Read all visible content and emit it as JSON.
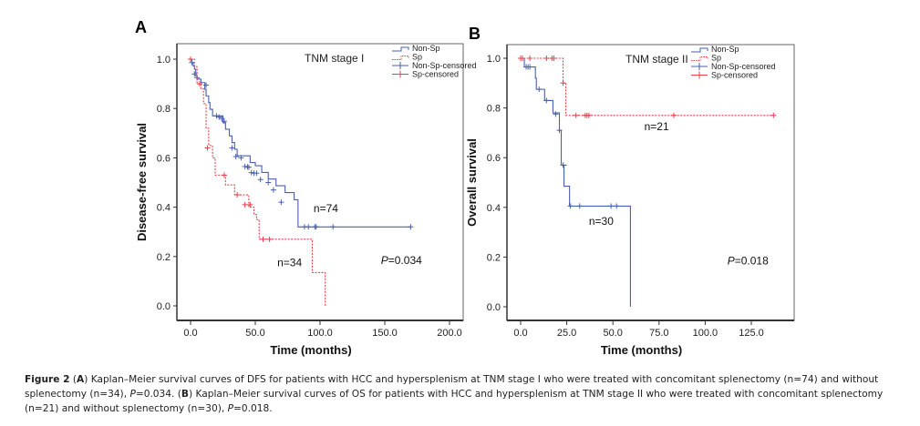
{
  "chart_data": [
    {
      "panel": "A",
      "type": "line",
      "subtype": "kaplan-meier",
      "title": "TNM stage I",
      "xlabel": "Time (months)",
      "ylabel": "Disease-free survival",
      "xlim": [
        -2,
        210
      ],
      "ylim": [
        -0.05,
        1.05
      ],
      "xticks": [
        0,
        50,
        100,
        150,
        200
      ],
      "xtick_labels": [
        "0.0",
        "50.0",
        "100.0",
        "150.0",
        "200.0"
      ],
      "yticks": [
        0,
        0.2,
        0.4,
        0.6,
        0.8,
        1.0
      ],
      "ytick_labels": [
        "0.0",
        "0.2",
        "0.4",
        "0.6",
        "0.8",
        "1.0"
      ],
      "legend": [
        "Non-Sp",
        "Sp",
        "Non-Sp-censored",
        "Sp-censored"
      ],
      "legend_position": "top-right",
      "annotations": [
        {
          "text": "n=74",
          "x": 95,
          "y": 0.38
        },
        {
          "text": "n=34",
          "x": 67,
          "y": 0.16
        },
        {
          "text": "P=0.034",
          "x": 147,
          "y": 0.17,
          "italic_prefix": "P"
        }
      ],
      "series": [
        {
          "name": "Non-Sp",
          "color": "#4a5fb0",
          "dash": false,
          "steps": [
            [
              0,
              1.0
            ],
            [
              1,
              0.986
            ],
            [
              2,
              0.973
            ],
            [
              3,
              0.959
            ],
            [
              4,
              0.932
            ],
            [
              5,
              0.919
            ],
            [
              8,
              0.905
            ],
            [
              11,
              0.878
            ],
            [
              12,
              0.851
            ],
            [
              14,
              0.824
            ],
            [
              15,
              0.797
            ],
            [
              17,
              0.77
            ],
            [
              25,
              0.743
            ],
            [
              27,
              0.716
            ],
            [
              30,
              0.689
            ],
            [
              32,
              0.662
            ],
            [
              34,
              0.635
            ],
            [
              36,
              0.608
            ],
            [
              46,
              0.581
            ],
            [
              50,
              0.568
            ],
            [
              55,
              0.541
            ],
            [
              60,
              0.514
            ],
            [
              66,
              0.487
            ],
            [
              73,
              0.459
            ],
            [
              80,
              0.43
            ],
            [
              83,
              0.32
            ],
            [
              170,
              0.32
            ]
          ],
          "censored": [
            [
              1,
              0.986
            ],
            [
              3,
              0.94
            ],
            [
              5,
              0.925
            ],
            [
              12,
              0.895
            ],
            [
              20,
              0.77
            ],
            [
              22,
              0.765
            ],
            [
              24,
              0.76
            ],
            [
              26,
              0.748
            ],
            [
              32,
              0.64
            ],
            [
              35,
              0.605
            ],
            [
              39,
              0.6
            ],
            [
              42,
              0.565
            ],
            [
              44,
              0.563
            ],
            [
              45,
              0.562
            ],
            [
              47,
              0.54
            ],
            [
              49,
              0.538
            ],
            [
              51,
              0.538
            ],
            [
              54,
              0.512
            ],
            [
              60,
              0.5
            ],
            [
              64,
              0.47
            ],
            [
              70,
              0.42
            ],
            [
              88,
              0.32
            ],
            [
              91,
              0.32
            ],
            [
              96,
              0.32
            ],
            [
              97,
              0.32
            ],
            [
              110,
              0.32
            ],
            [
              170,
              0.32
            ]
          ]
        },
        {
          "name": "Sp",
          "color": "#e8404a",
          "dash": true,
          "steps": [
            [
              0,
              1.0
            ],
            [
              3,
              0.97
            ],
            [
              5,
              0.9
            ],
            [
              8,
              0.88
            ],
            [
              10,
              0.82
            ],
            [
              12,
              0.72
            ],
            [
              14,
              0.65
            ],
            [
              17,
              0.6
            ],
            [
              19,
              0.53
            ],
            [
              25,
              0.53
            ],
            [
              27,
              0.49
            ],
            [
              34,
              0.45
            ],
            [
              39,
              0.45
            ],
            [
              45,
              0.4
            ],
            [
              48,
              0.4
            ],
            [
              49,
              0.37
            ],
            [
              51,
              0.35
            ],
            [
              53,
              0.27
            ],
            [
              93,
              0.27
            ],
            [
              94,
              0.135
            ],
            [
              103,
              0.135
            ],
            [
              104,
              0.0
            ]
          ],
          "censored": [
            [
              0,
              1.0
            ],
            [
              7,
              0.9
            ],
            [
              13,
              0.64
            ],
            [
              26,
              0.53
            ],
            [
              36,
              0.45
            ],
            [
              42,
              0.41
            ],
            [
              46,
              0.41
            ],
            [
              56,
              0.27
            ],
            [
              61,
              0.27
            ]
          ]
        }
      ]
    },
    {
      "panel": "B",
      "type": "line",
      "subtype": "kaplan-meier",
      "title": "TNM stage II",
      "xlabel": "Time (months)",
      "ylabel": "Overall survival",
      "xlim": [
        -7,
        145
      ],
      "ylim": [
        -0.05,
        1.05
      ],
      "xticks": [
        0,
        25,
        50,
        75,
        100,
        125
      ],
      "xtick_labels": [
        "0.0",
        "25.0",
        "50.0",
        "75.0",
        "100.0",
        "125.0"
      ],
      "yticks": [
        0,
        0.2,
        0.4,
        0.6,
        0.8,
        1.0
      ],
      "ytick_labels": [
        "0.0",
        "0.2",
        "0.4",
        "0.6",
        "0.8",
        "1.0"
      ],
      "legend": [
        "Non-Sp",
        "Sp",
        "Non-Sp-censored",
        "Sp-censored"
      ],
      "legend_position": "top-right",
      "annotations": [
        {
          "text": "n=21",
          "x": 67,
          "y": 0.71
        },
        {
          "text": "n=30",
          "x": 37,
          "y": 0.33
        },
        {
          "text": "P=0.018",
          "x": 112,
          "y": 0.17,
          "italic_prefix": "P"
        }
      ],
      "series": [
        {
          "name": "Non-Sp",
          "color": "#4a5fb0",
          "dash": false,
          "steps": [
            [
              0,
              1.0
            ],
            [
              2,
              0.965
            ],
            [
              7,
              0.965
            ],
            [
              8,
              0.92
            ],
            [
              8.5,
              0.875
            ],
            [
              12,
              0.875
            ],
            [
              13,
              0.83
            ],
            [
              17,
              0.83
            ],
            [
              17.5,
              0.78
            ],
            [
              20,
              0.78
            ],
            [
              21,
              0.71
            ],
            [
              22,
              0.57
            ],
            [
              25,
              0.57
            ],
            [
              23.5,
              0.485
            ],
            [
              26,
              0.485
            ],
            [
              26.5,
              0.405
            ],
            [
              59,
              0.405
            ],
            [
              59.5,
              0.0
            ]
          ],
          "censored": [
            [
              3,
              0.965
            ],
            [
              4,
              0.965
            ],
            [
              5,
              0.965
            ],
            [
              10,
              0.875
            ],
            [
              14,
              0.83
            ],
            [
              19,
              0.775
            ],
            [
              21,
              0.71
            ],
            [
              23,
              0.57
            ],
            [
              27,
              0.405
            ],
            [
              32,
              0.405
            ],
            [
              49,
              0.405
            ],
            [
              52,
              0.405
            ]
          ]
        },
        {
          "name": "Sp",
          "color": "#e8404a",
          "dash": true,
          "steps": [
            [
              0,
              1.0
            ],
            [
              23,
              1.0
            ],
            [
              23,
              0.9
            ],
            [
              24,
              0.9
            ],
            [
              24.5,
              0.77
            ],
            [
              137,
              0.77
            ]
          ],
          "censored": [
            [
              0,
              1.0
            ],
            [
              1,
              1.0
            ],
            [
              5,
              1.0
            ],
            [
              14,
              1.0
            ],
            [
              17,
              1.0
            ],
            [
              18,
              1.0
            ],
            [
              23,
              0.9
            ],
            [
              30,
              0.77
            ],
            [
              35,
              0.77
            ],
            [
              36,
              0.77
            ],
            [
              37,
              0.77
            ],
            [
              83,
              0.77
            ],
            [
              137,
              0.77
            ]
          ]
        }
      ]
    }
  ],
  "panels": {
    "a_letter": "A",
    "b_letter": "B"
  },
  "caption": {
    "figure_label": "Figure 2",
    "part_a_letter": "A",
    "part_a_text": " Kaplan–Meier survival curves of DFS for patients with HCC and hypersplenism at TNM stage I who were treated with concomitant splenectomy (n=74) and without splenectomy (n=34), ",
    "part_a_p": "P",
    "part_a_pval": "=0.034. ",
    "part_b_letter": "B",
    "part_b_text": " Kaplan–Meier survival curves of OS for patients with HCC and hypersplenism at TNM stage II who were treated with concomitant splenectomy (n=21) and without splenectomy (n=30), ",
    "part_b_p": "P",
    "part_b_pval": "=0.018."
  }
}
